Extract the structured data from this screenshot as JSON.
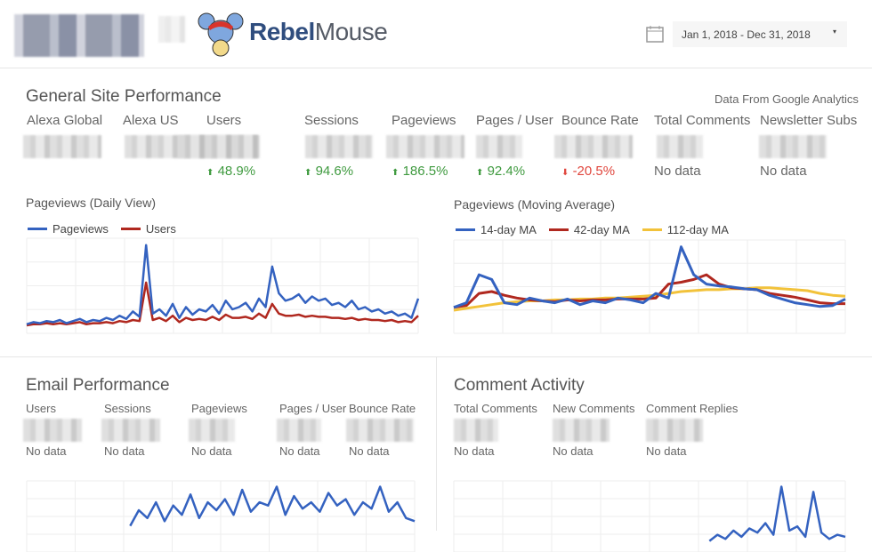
{
  "header": {
    "brand": "Rebel",
    "brand2": "Mouse",
    "calendar_icon": "calendar-icon",
    "date_range": "Jan 1, 2018 - Dec 31, 2018"
  },
  "general": {
    "title": "General Site Performance",
    "source": "Data From Google Analytics",
    "metrics": [
      {
        "label": "Alexa Global",
        "delta": "",
        "dir": ""
      },
      {
        "label": "Alexa US",
        "delta": "",
        "dir": ""
      },
      {
        "label": "Users",
        "delta": "48.9%",
        "dir": "up"
      },
      {
        "label": "Sessions",
        "delta": "94.6%",
        "dir": "up"
      },
      {
        "label": "Pageviews",
        "delta": "186.5%",
        "dir": "up"
      },
      {
        "label": "Pages / User",
        "delta": "92.4%",
        "dir": "up"
      },
      {
        "label": "Bounce Rate",
        "delta": "-20.5%",
        "dir": "down"
      },
      {
        "label": "Total Comments",
        "delta": "No data",
        "dir": ""
      },
      {
        "label": "Newsletter Subs",
        "delta": "No data",
        "dir": ""
      }
    ]
  },
  "colors": {
    "blue": "#3462c0",
    "red": "#b0281f",
    "yellow": "#f2c23a",
    "up": "#3f9a3f",
    "down": "#e0463d"
  },
  "chart_data": [
    {
      "type": "line",
      "title": "Pageviews (Daily View)",
      "grid": true,
      "legend": "top-left",
      "series": [
        {
          "name": "Pageviews",
          "color": "#3462c0",
          "values": [
            6,
            8,
            7,
            9,
            8,
            10,
            7,
            9,
            11,
            8,
            10,
            9,
            12,
            10,
            14,
            11,
            18,
            13,
            80,
            16,
            20,
            14,
            25,
            12,
            22,
            15,
            20,
            18,
            24,
            16,
            28,
            20,
            22,
            26,
            18,
            30,
            22,
            60,
            35,
            28,
            30,
            34,
            26,
            32,
            28,
            30,
            24,
            26,
            22,
            28,
            20,
            22,
            18,
            20,
            16,
            18,
            14,
            16,
            12,
            30
          ]
        },
        {
          "name": "Users",
          "color": "#b0281f",
          "values": [
            5,
            6,
            6,
            7,
            6,
            7,
            6,
            7,
            8,
            6,
            7,
            7,
            8,
            7,
            9,
            8,
            10,
            9,
            45,
            10,
            12,
            9,
            14,
            8,
            12,
            10,
            11,
            10,
            13,
            10,
            15,
            12,
            12,
            13,
            11,
            16,
            12,
            25,
            16,
            14,
            14,
            15,
            13,
            14,
            13,
            13,
            12,
            12,
            11,
            12,
            10,
            11,
            10,
            10,
            9,
            10,
            8,
            9,
            8,
            14
          ]
        }
      ]
    },
    {
      "type": "line",
      "title": "Pageviews (Moving Average)",
      "grid": true,
      "legend": "top-left",
      "series": [
        {
          "name": "14-day MA",
          "color": "#3462c0",
          "values": [
            25,
            30,
            60,
            55,
            30,
            28,
            35,
            32,
            30,
            34,
            28,
            32,
            30,
            35,
            33,
            30,
            40,
            35,
            90,
            60,
            50,
            48,
            47,
            45,
            44,
            38,
            34,
            30,
            28,
            26,
            27,
            34
          ]
        },
        {
          "name": "42-day MA",
          "color": "#b0281f",
          "values": [
            25,
            27,
            40,
            42,
            38,
            35,
            33,
            32,
            31,
            33,
            32,
            33,
            33,
            34,
            34,
            34,
            35,
            50,
            52,
            55,
            60,
            50,
            46,
            45,
            44,
            40,
            38,
            36,
            33,
            30,
            29,
            29
          ]
        },
        {
          "name": "112-day MA",
          "color": "#f2c23a",
          "values": [
            22,
            24,
            26,
            28,
            30,
            31,
            32,
            32,
            33,
            33,
            34,
            34,
            35,
            35,
            36,
            37,
            38,
            40,
            42,
            43,
            44,
            44,
            45,
            45,
            46,
            46,
            45,
            44,
            43,
            40,
            38,
            37
          ]
        }
      ]
    },
    {
      "type": "line",
      "title": "",
      "series": [
        {
          "color": "#3462c0",
          "values": [
            0,
            0,
            0,
            0,
            0,
            0,
            0,
            0,
            0,
            0,
            0,
            0,
            15,
            25,
            20,
            30,
            18,
            28,
            22,
            35,
            20,
            30,
            25,
            32,
            22,
            38,
            24,
            30,
            28,
            40,
            22,
            34,
            26,
            30,
            24,
            36,
            28,
            32,
            22,
            30,
            26,
            40,
            24,
            30,
            20,
            18
          ]
        }
      ]
    },
    {
      "type": "line",
      "title": "",
      "series": [
        {
          "color": "#3462c0",
          "values": [
            0,
            0,
            0,
            0,
            0,
            0,
            0,
            0,
            0,
            0,
            0,
            0,
            0,
            0,
            0,
            0,
            0,
            0,
            0,
            0,
            0,
            0,
            0,
            0,
            0,
            0,
            0,
            0,
            0,
            0,
            0,
            0,
            8,
            14,
            10,
            18,
            12,
            20,
            16,
            25,
            14,
            60,
            18,
            22,
            12,
            55,
            16,
            10,
            14,
            12
          ]
        }
      ]
    }
  ],
  "email": {
    "title": "Email Performance",
    "metrics": [
      {
        "label": "Users",
        "value": "No data"
      },
      {
        "label": "Sessions",
        "value": "No data"
      },
      {
        "label": "Pageviews",
        "value": "No data"
      },
      {
        "label": "Pages / User",
        "value": "No data"
      },
      {
        "label": "Bounce Rate",
        "value": "No data"
      }
    ]
  },
  "comments": {
    "title": "Comment Activity",
    "metrics": [
      {
        "label": "Total Comments",
        "value": "No data"
      },
      {
        "label": "New Comments",
        "value": "No data"
      },
      {
        "label": "Comment Replies",
        "value": "No data"
      }
    ]
  }
}
